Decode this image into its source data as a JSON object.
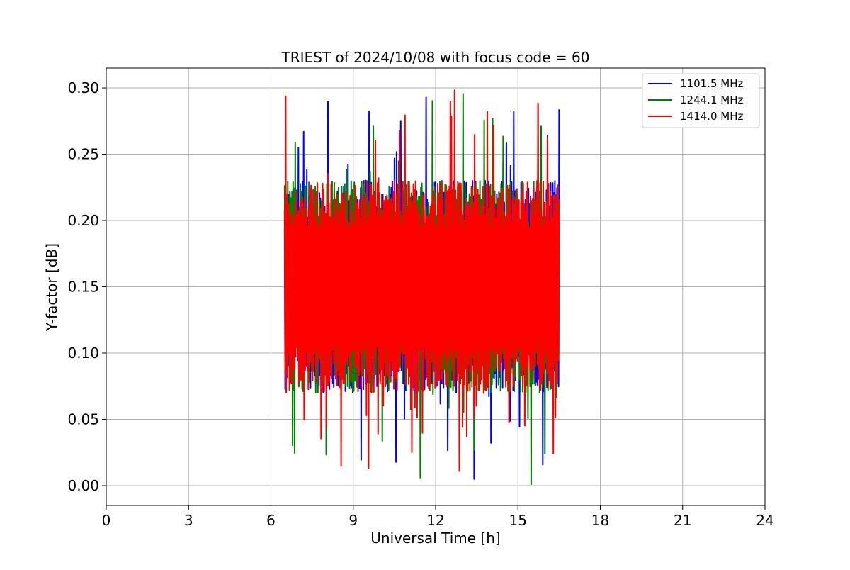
{
  "chart_data": {
    "type": "line",
    "title": "TRIEST of 2024/10/08 with focus code = 60",
    "xlabel": "Universal Time [h]",
    "ylabel": "Y-factor [dB]",
    "xlim": [
      0,
      24
    ],
    "ylim": [
      -0.015,
      0.315
    ],
    "xticks": [
      0,
      3,
      6,
      9,
      12,
      15,
      18,
      21,
      24
    ],
    "yticks": [
      0.0,
      0.05,
      0.1,
      0.15,
      0.2,
      0.25,
      0.3
    ],
    "xtick_labels": [
      "0",
      "3",
      "6",
      "9",
      "12",
      "15",
      "18",
      "21",
      "24"
    ],
    "ytick_labels": [
      "0.00",
      "0.05",
      "0.10",
      "0.15",
      "0.20",
      "0.25",
      "0.30"
    ],
    "grid": true,
    "legend_position": "top-right",
    "time_range": [
      6.5,
      16.5
    ],
    "series": [
      {
        "name": "1101.5 MHz",
        "color": "#0000ff",
        "value_range": [
          0.0,
          0.295
        ],
        "typical_range": [
          0.07,
          0.23
        ]
      },
      {
        "name": "1244.1 MHz",
        "color": "#008000",
        "value_range": [
          0.0,
          0.3
        ],
        "typical_range": [
          0.07,
          0.23
        ]
      },
      {
        "name": "1414.0 MHz",
        "color": "#ff0000",
        "value_range": [
          0.005,
          0.3
        ],
        "typical_range": [
          0.07,
          0.23
        ]
      }
    ]
  }
}
